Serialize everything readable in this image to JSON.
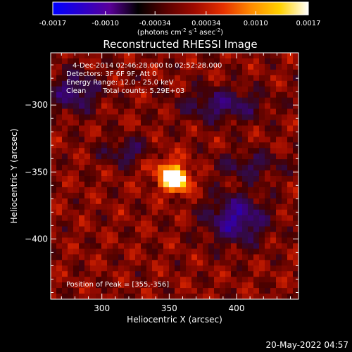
{
  "colorbar": {
    "ticks": [
      "-0.0017",
      "-0.0010",
      "-0.00034",
      "0.00034",
      "0.0010",
      "0.0017"
    ],
    "tick_values": [
      -0.0017,
      -0.001,
      -0.00034,
      0.00034,
      0.001,
      0.0017
    ],
    "range": [
      -0.0017,
      0.0017
    ],
    "units_prefix": "(photons cm",
    "units_exp1": "-2",
    "units_mid1": " s",
    "units_exp2": "-1",
    "units_mid2": " asec",
    "units_exp3": "-2",
    "units_suffix": ")",
    "colors": [
      "#0000ff",
      "#2a00cc",
      "#5a0099",
      "#000000",
      "#5a0000",
      "#a00a00",
      "#e63000",
      "#ff8c00",
      "#ffd200",
      "#ffffff"
    ]
  },
  "chart_data": {
    "type": "heatmap",
    "title": "Reconstructed RHESSI Image",
    "xlabel": "Heliocentric X (arcsec)",
    "ylabel": "Heliocentric Y (arcsec)",
    "xlim": [
      262,
      446
    ],
    "ylim": [
      -445,
      -261
    ],
    "x_ticks": [
      300,
      350,
      400
    ],
    "y_ticks": [
      -300,
      -350,
      -400
    ],
    "peak": [
      355,
      -356
    ],
    "annotations": {
      "time": "4-Dec-2014 02:46:28.000 to 02:52:28.000",
      "detectors": "Detectors: 3F 6F 9F, Att 0",
      "energy": "Energy Range: 12.0 - 25.0 keV",
      "method": "Clean",
      "counts": "Total counts: 5.29E+03",
      "peak_text": "Position of Peak = [355,-356]"
    }
  },
  "footer": {
    "timestamp": "20-May-2022 04:57"
  }
}
